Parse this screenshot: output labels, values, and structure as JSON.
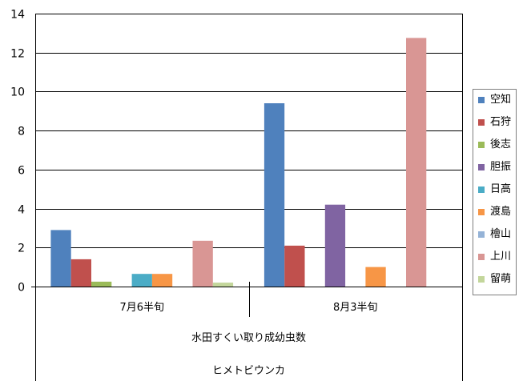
{
  "chart_data": {
    "type": "bar",
    "title": "",
    "xlabel": "",
    "ylabel": "",
    "ylim": [
      0,
      14
    ],
    "yticks": [
      0,
      2,
      4,
      6,
      8,
      10,
      12,
      14
    ],
    "grid": true,
    "legend_position": "right",
    "categories": [
      "7月6半旬",
      "8月3半旬"
    ],
    "category_group_labels": [
      "水田すくい取り成幼虫数",
      "ヒメトビウンカ"
    ],
    "series": [
      {
        "name": "空知",
        "color": "#4f81bd",
        "values": [
          2.9,
          9.4
        ]
      },
      {
        "name": "石狩",
        "color": "#c0504d",
        "values": [
          1.4,
          2.1
        ]
      },
      {
        "name": "後志",
        "color": "#9bbb59",
        "values": [
          0.25,
          0
        ]
      },
      {
        "name": "胆振",
        "color": "#8064a2",
        "values": [
          0,
          4.2
        ]
      },
      {
        "name": "日高",
        "color": "#4bacc6",
        "values": [
          0.65,
          0
        ]
      },
      {
        "name": "渡島",
        "color": "#f79646",
        "values": [
          0.65,
          1.0
        ]
      },
      {
        "name": "檜山",
        "color": "#95b3d7",
        "values": [
          0,
          0
        ]
      },
      {
        "name": "上川",
        "color": "#d99694",
        "values": [
          2.35,
          12.75
        ]
      },
      {
        "name": "留萌",
        "color": "#c3d69b",
        "values": [
          0.2,
          0
        ]
      }
    ]
  }
}
